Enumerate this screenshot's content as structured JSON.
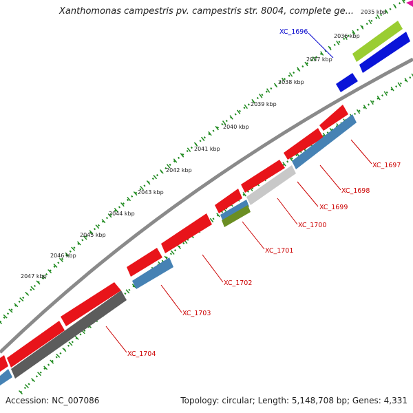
{
  "title": "Xanthomonas campestris pv. campestris str. 8004, complete ge...",
  "footer": {
    "accession": "Accession: NC_007086",
    "summary": "Topology: circular; Length: 5,148,708 bp; Genes: 4,331"
  },
  "kbp_ticks": [
    "2035 kbp",
    "2036 kbp",
    "2037 kbp",
    "2038 kbp",
    "2039 kbp",
    "2040 kbp",
    "2041 kbp",
    "2042 kbp",
    "2043 kbp",
    "2044 kbp",
    "2045 kbp",
    "2046 kbp",
    "2047 kbp"
  ],
  "genes": [
    {
      "name": "XC_1696",
      "color": "#0000cc"
    },
    {
      "name": "XC_1697",
      "color": "#cc0000"
    },
    {
      "name": "XC_1698",
      "color": "#cc0000"
    },
    {
      "name": "XC_1699",
      "color": "#cc0000"
    },
    {
      "name": "XC_1700",
      "color": "#cc0000"
    },
    {
      "name": "XC_1701",
      "color": "#cc0000"
    },
    {
      "name": "XC_1702",
      "color": "#cc0000"
    },
    {
      "name": "XC_1703",
      "color": "#cc0000"
    },
    {
      "name": "XC_1704",
      "color": "#cc0000"
    }
  ],
  "colors": {
    "cds_red": "#e8141a",
    "steel_blue": "#4682b4",
    "blue": "#0a14d8",
    "lime": "#9acd32",
    "olive": "#6b8e23",
    "gray": "#9e9e9e",
    "dark_gray": "#5c5c5c",
    "light_gray": "#c8c8c8",
    "tick_green": "#1f8a1f",
    "marker_magenta": "#e0149b"
  }
}
